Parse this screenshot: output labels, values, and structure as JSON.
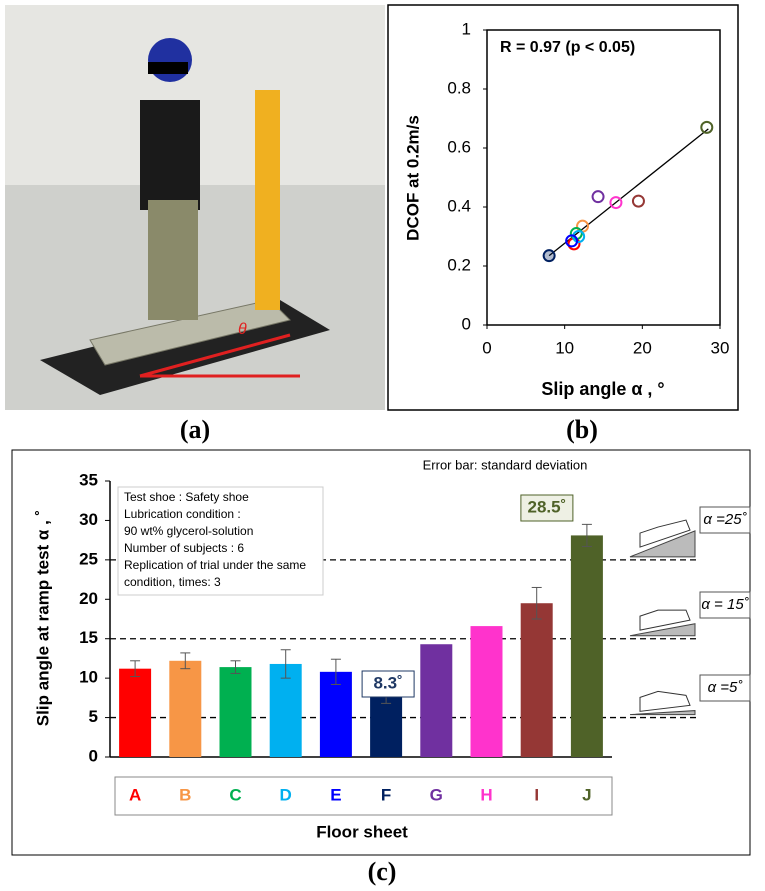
{
  "photo": {
    "annotation": "θ"
  },
  "panel_labels": [
    "(a)",
    "(b)",
    "(c)"
  ],
  "chart_data": [
    {
      "type": "scatter",
      "annotation": "R = 0.97 (p < 0.05)",
      "x_label": "Slip angle α , °",
      "y_label": "DCOF at 0.2m/s",
      "x": [
        11.2,
        12.3,
        11.5,
        11.8,
        10.9,
        8.0,
        14.3,
        16.6,
        19.5,
        28.3
      ],
      "values": [
        0.275,
        0.335,
        0.31,
        0.3,
        0.285,
        0.235,
        0.435,
        0.415,
        0.42,
        0.67
      ],
      "colors": [
        "#ff0000",
        "#f79646",
        "#00b050",
        "#00b0f0",
        "#0000ff",
        "#002060",
        "#7030a0",
        "#ff33cc",
        "#953735",
        "#4f6228"
      ],
      "fit_line": {
        "x": [
          8,
          28.5
        ],
        "values": [
          0.235,
          0.665
        ]
      },
      "xlim": [
        0,
        30
      ],
      "xticks": [
        0,
        10,
        20,
        30
      ],
      "ylim": [
        0,
        1
      ],
      "yticks": [
        0,
        0.2,
        0.4,
        0.6,
        0.8,
        1
      ]
    },
    {
      "type": "bar",
      "x_label": "Floor sheet",
      "y_label": "Slip angle at ramp test α , ˚",
      "note": "Error bar: standard deviation",
      "info": [
        "Test shoe : Safety shoe",
        "Lubrication condition :",
        "90 wt% glycerol-solution",
        "Number of subjects : 6",
        "Replication of trial under the same",
        "condition, times: 3"
      ],
      "categories": [
        "A",
        "B",
        "C",
        "D",
        "E",
        "F",
        "G",
        "H",
        "I",
        "J"
      ],
      "values": [
        11.2,
        12.2,
        11.4,
        11.8,
        10.8,
        7.9,
        14.3,
        16.6,
        19.5,
        28.1
      ],
      "errors": [
        1.0,
        1.0,
        0.8,
        1.8,
        1.6,
        1.1,
        null,
        null,
        2.0,
        1.4
      ],
      "colors": [
        "#ff0000",
        "#f79646",
        "#00b050",
        "#00b0f0",
        "#0000ff",
        "#002060",
        "#7030a0",
        "#ff33cc",
        "#953735",
        "#4f6228"
      ],
      "annotations": [
        {
          "text": "8.3˚",
          "color": "#1f3864"
        },
        {
          "text": "28.5˚",
          "color": "#4f6228"
        }
      ],
      "reference_lines": [
        {
          "value": 5,
          "label": "α =5˚"
        },
        {
          "value": 15,
          "label": "α = 15˚"
        },
        {
          "value": 25,
          "label": "α =25˚"
        }
      ],
      "ylim": [
        0,
        35
      ],
      "yticks": [
        0,
        5,
        10,
        15,
        20,
        25,
        30,
        35
      ]
    }
  ]
}
